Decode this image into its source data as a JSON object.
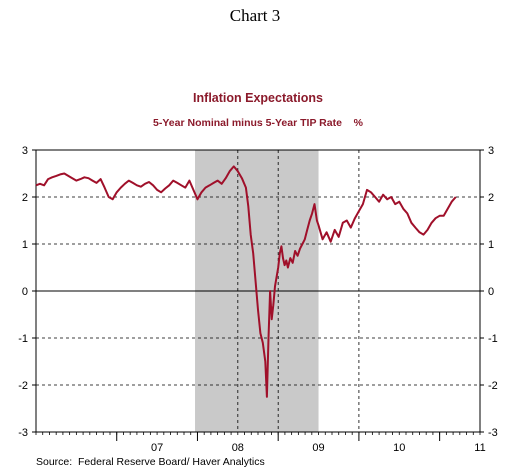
{
  "heading": "Chart 3",
  "source": "Source:  Federal Reserve Board/ Haver Analytics",
  "colors": {
    "line": "#a0102a",
    "shade": "#c9c9c9",
    "title": "#8b1a2b"
  },
  "chart_data": {
    "type": "line",
    "title": "Inflation Expectations",
    "subtitle": "5-Year Nominal minus 5-Year TIP Rate    %",
    "xlabel": "",
    "ylabel": "",
    "x_unit": "year",
    "xlim": [
      2006.0,
      2011.5
    ],
    "ylim": [
      -3,
      3
    ],
    "yticks": [
      3,
      2,
      1,
      0,
      -1,
      -2,
      -3
    ],
    "x_tick_labels": [
      {
        "label": "07",
        "x": 2007.5
      },
      {
        "label": "08",
        "x": 2008.5
      },
      {
        "label": "09",
        "x": 2009.5
      },
      {
        "label": "10",
        "x": 2010.5
      },
      {
        "label": "11",
        "x": 2011.5
      }
    ],
    "year_boundaries": [
      2007.0,
      2008.0,
      2009.0,
      2010.0,
      2011.0
    ],
    "vertical_gridlines": [
      2009.0,
      2010.0
    ],
    "mid_gridline": 2008.5,
    "recession_shading": {
      "start": 2007.97,
      "end": 2009.5
    },
    "right_axis_mirrors_left": true,
    "zero_line": true,
    "grid": "dashed at 1 and 2 and year lines",
    "series": [
      {
        "name": "",
        "x": [
          2006.0,
          2006.05,
          2006.1,
          2006.15,
          2006.2,
          2006.25,
          2006.3,
          2006.35,
          2006.4,
          2006.45,
          2006.5,
          2006.55,
          2006.6,
          2006.65,
          2006.7,
          2006.75,
          2006.8,
          2006.85,
          2006.9,
          2006.95,
          2007.0,
          2007.05,
          2007.1,
          2007.15,
          2007.2,
          2007.25,
          2007.3,
          2007.35,
          2007.4,
          2007.45,
          2007.5,
          2007.55,
          2007.6,
          2007.65,
          2007.7,
          2007.75,
          2007.8,
          2007.85,
          2007.9,
          2007.95,
          2008.0,
          2008.05,
          2008.1,
          2008.15,
          2008.2,
          2008.25,
          2008.3,
          2008.35,
          2008.4,
          2008.45,
          2008.5,
          2008.55,
          2008.6,
          2008.63,
          2008.66,
          2008.69,
          2008.72,
          2008.75,
          2008.78,
          2008.81,
          2008.84,
          2008.86,
          2008.88,
          2008.9,
          2008.92,
          2008.94,
          2008.96,
          2008.98,
          2009.0,
          2009.02,
          2009.04,
          2009.06,
          2009.08,
          2009.1,
          2009.12,
          2009.15,
          2009.18,
          2009.21,
          2009.24,
          2009.27,
          2009.3,
          2009.33,
          2009.36,
          2009.39,
          2009.42,
          2009.45,
          2009.48,
          2009.5,
          2009.55,
          2009.6,
          2009.65,
          2009.7,
          2009.75,
          2009.8,
          2009.85,
          2009.9,
          2009.95,
          2010.0,
          2010.05,
          2010.1,
          2010.15,
          2010.2,
          2010.25,
          2010.3,
          2010.35,
          2010.4,
          2010.45,
          2010.5,
          2010.55,
          2010.6,
          2010.65,
          2010.7,
          2010.75,
          2010.8,
          2010.85,
          2010.9,
          2010.95,
          2011.0,
          2011.05,
          2011.1,
          2011.15,
          2011.2
        ],
        "values": [
          2.25,
          2.28,
          2.25,
          2.38,
          2.42,
          2.45,
          2.48,
          2.5,
          2.45,
          2.4,
          2.35,
          2.38,
          2.42,
          2.4,
          2.35,
          2.3,
          2.38,
          2.2,
          2.0,
          1.95,
          2.1,
          2.2,
          2.28,
          2.35,
          2.3,
          2.25,
          2.22,
          2.28,
          2.32,
          2.25,
          2.15,
          2.1,
          2.18,
          2.25,
          2.35,
          2.3,
          2.25,
          2.2,
          2.35,
          2.15,
          1.95,
          2.1,
          2.2,
          2.25,
          2.3,
          2.35,
          2.28,
          2.4,
          2.55,
          2.65,
          2.55,
          2.4,
          2.2,
          1.8,
          1.2,
          0.8,
          0.2,
          -0.4,
          -0.9,
          -1.1,
          -1.5,
          -2.25,
          -1.0,
          0.0,
          -0.6,
          -0.3,
          0.1,
          0.3,
          0.5,
          0.8,
          0.95,
          0.7,
          0.55,
          0.65,
          0.5,
          0.7,
          0.6,
          0.85,
          0.75,
          0.9,
          1.0,
          1.1,
          1.3,
          1.5,
          1.65,
          1.85,
          1.5,
          1.4,
          1.1,
          1.25,
          1.05,
          1.3,
          1.15,
          1.45,
          1.5,
          1.35,
          1.55,
          1.7,
          1.85,
          2.15,
          2.1,
          2.0,
          1.9,
          2.05,
          1.95,
          2.0,
          1.85,
          1.9,
          1.75,
          1.65,
          1.45,
          1.35,
          1.25,
          1.2,
          1.3,
          1.45,
          1.55,
          1.6,
          1.6,
          1.75,
          1.9,
          2.0
        ]
      }
    ]
  }
}
